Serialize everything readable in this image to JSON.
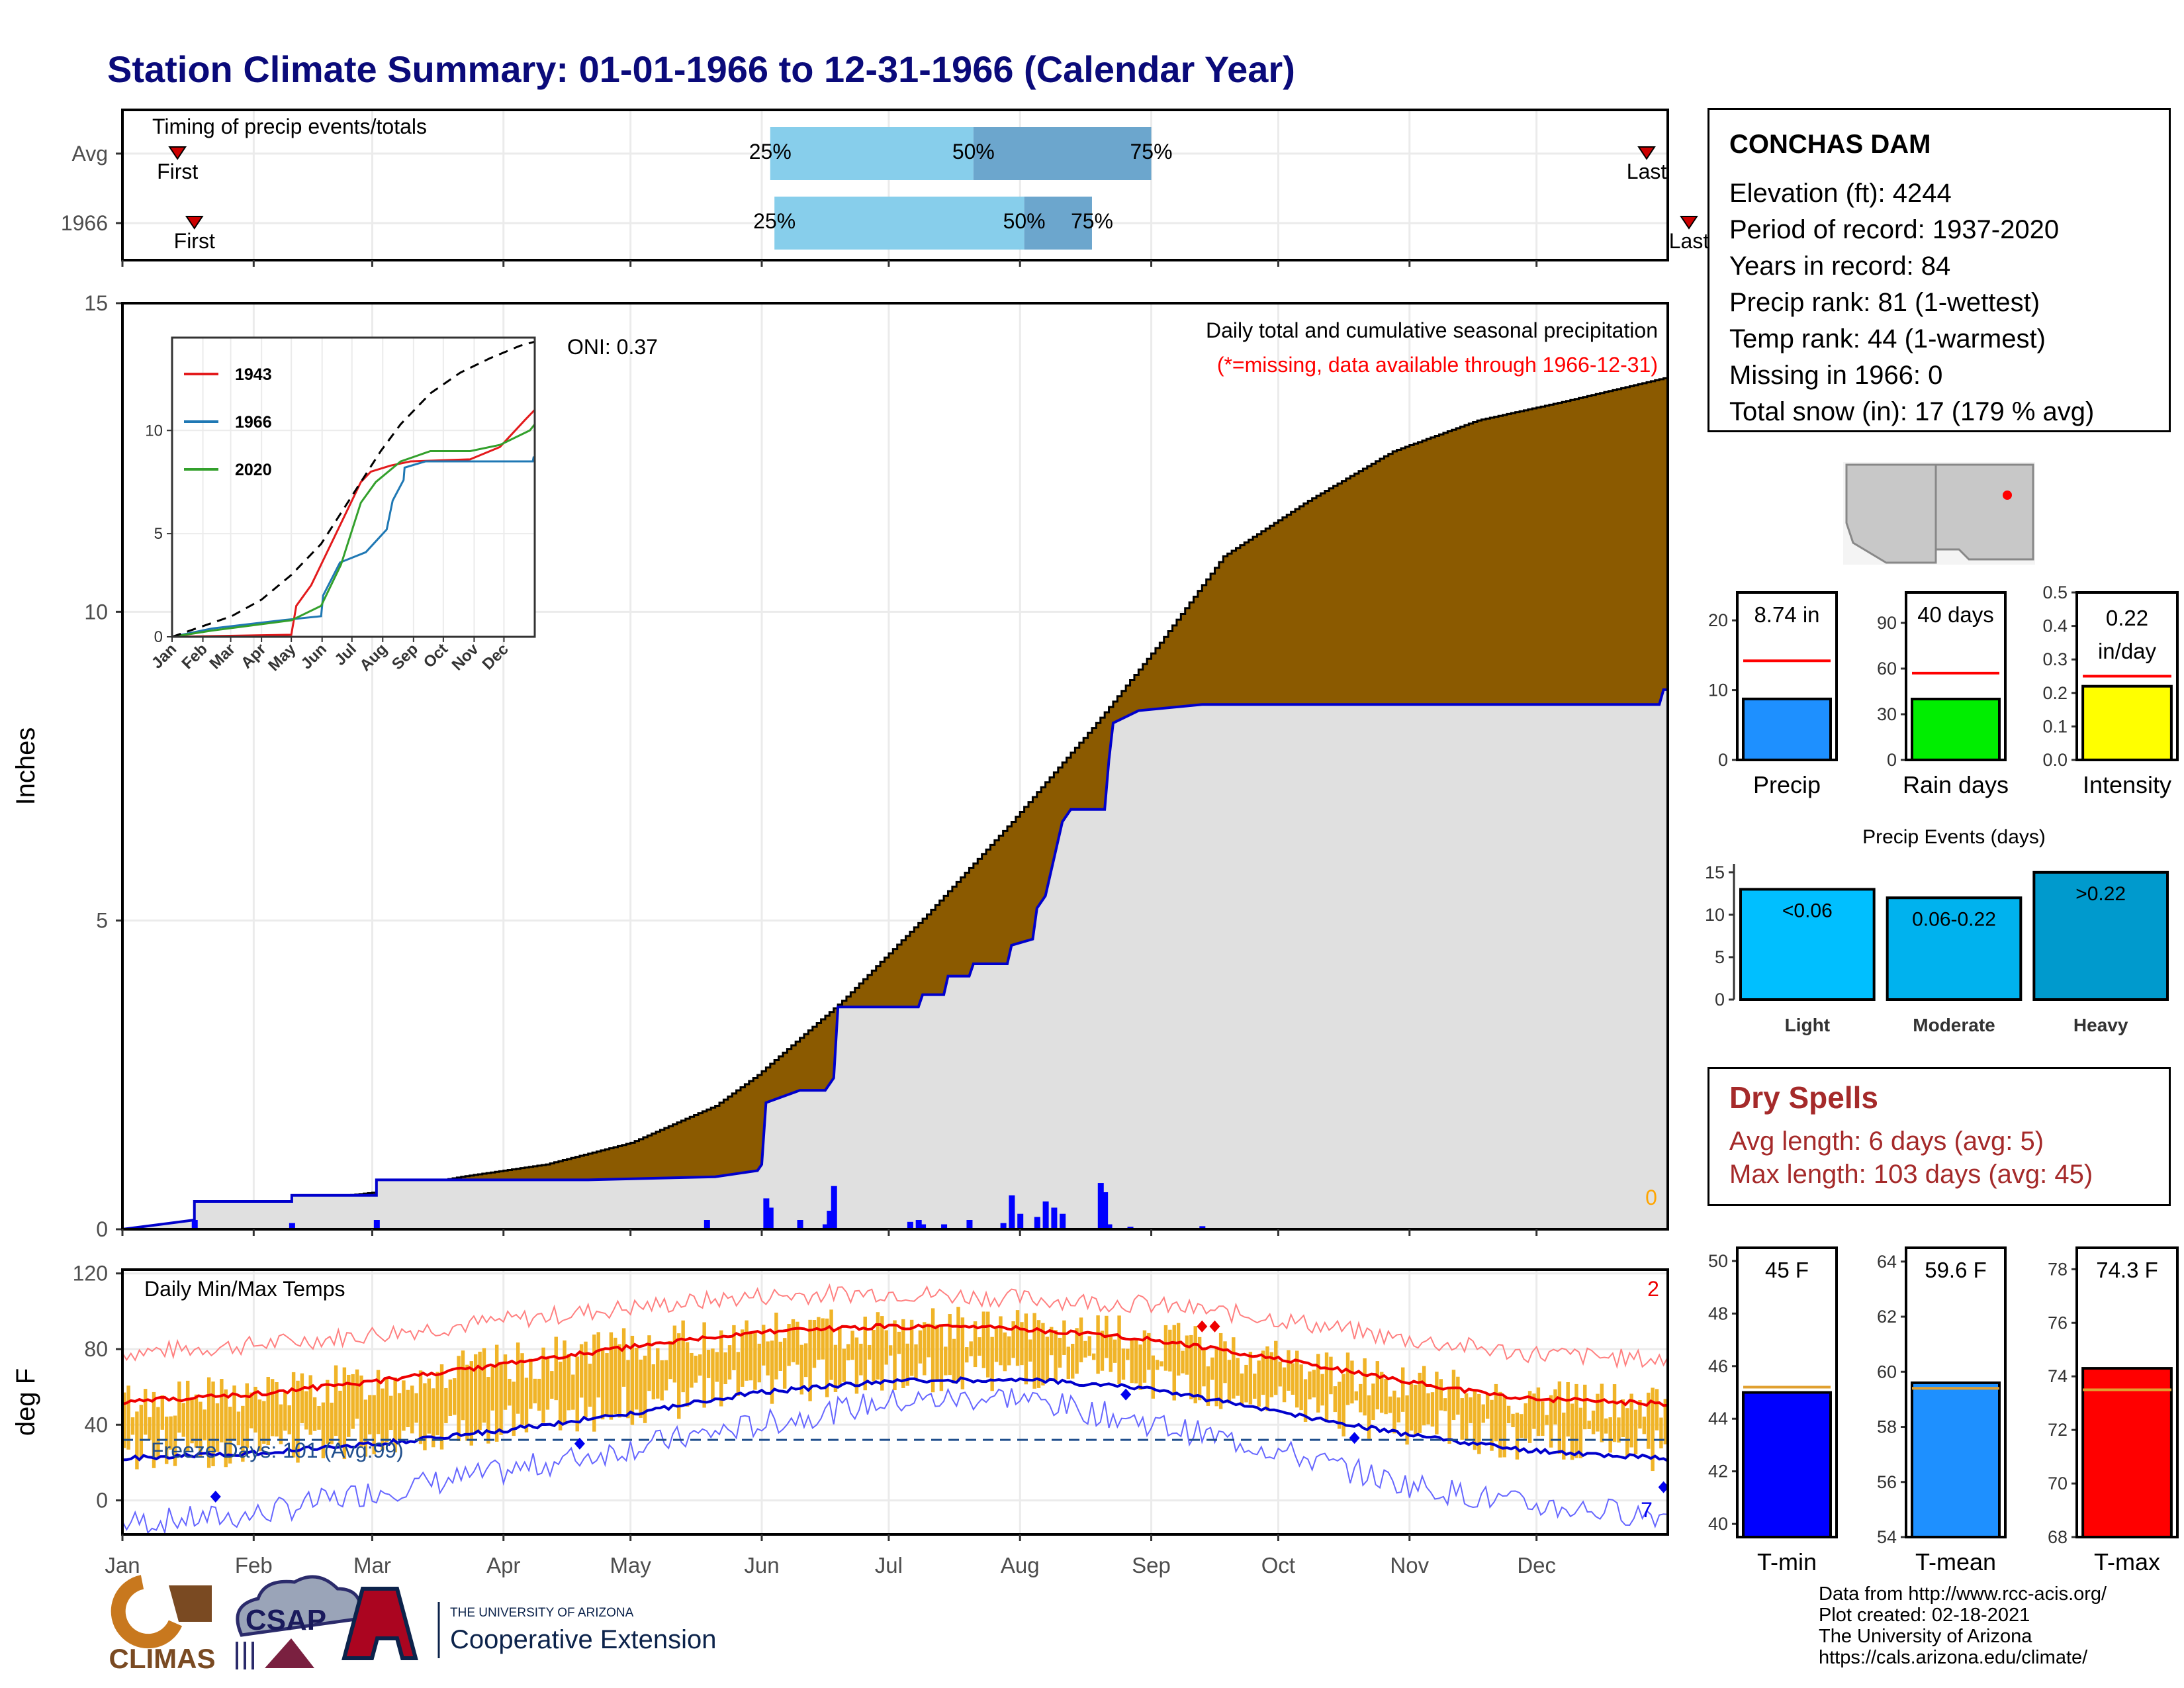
{
  "title": "Station Climate Summary: 01-01-1966 to 12-31-1966 (Calendar Year)",
  "station": {
    "name": "CONCHAS DAM",
    "lines": [
      "Elevation (ft): 4244",
      "Period of record: 1937-2020",
      "Years in record: 84",
      "Precip rank: 81 (1-wettest)",
      "Temp rank: 44 (1-warmest)",
      "Missing in 1966: 0",
      "Total snow (in): 17 (179 % avg)"
    ]
  },
  "dry_spells": {
    "title": "Dry Spells",
    "avg_length": "Avg length: 6 days (avg: 5)",
    "max_length": "Max length: 103 days (avg: 45)"
  },
  "credits": [
    "Data from http://www.rcc-acis.org/",
    "Plot created: 02-18-2021",
    "The University of Arizona",
    "https://cals.arizona.edu/climate/"
  ],
  "logos": {
    "climas": "CLIMAS",
    "csap": "CSAP",
    "uofa_line1": "THE UNIVERSITY OF ARIZONA",
    "uofa_line2": "Cooperative Extension"
  },
  "month_labels": [
    "Jan",
    "Feb",
    "Mar",
    "Apr",
    "May",
    "Jun",
    "Jul",
    "Aug",
    "Sep",
    "Oct",
    "Nov",
    "Dec"
  ],
  "chart_data": [
    {
      "id": "timing",
      "type": "bar",
      "title": "Timing of precip events/totals",
      "categories": [
        "Avg",
        "1966"
      ],
      "x_unit": "day of year",
      "rows": [
        {
          "label": "Avg",
          "first": 13,
          "q25": 153,
          "q50": 201,
          "q75": 243,
          "last": 360
        },
        {
          "label": "1966",
          "first": 17,
          "q25": 154,
          "q50": 213,
          "q75": 229,
          "last": 370
        }
      ],
      "quantile_labels": [
        "25%",
        "50%",
        "75%"
      ],
      "marker_labels": {
        "first": "First",
        "last": "Last"
      },
      "colors": {
        "q1": "#87ceeb",
        "q2": "#6ca6cd",
        "marker": "#cc0000"
      }
    },
    {
      "id": "precip",
      "type": "area",
      "ylabel": "Inches",
      "ylim": [
        0,
        15
      ],
      "yticks": [
        0,
        5,
        10,
        15
      ],
      "annotations": {
        "oni": "ONI: 0.37",
        "heading": "Daily total and cumulative seasonal precipitation",
        "note": "(*=missing, data available through 1966-12-31)",
        "missing_count": "0"
      },
      "series": [
        {
          "name": "avg cumulative",
          "color": "#8b5a00",
          "points": [
            [
              0,
              0
            ],
            [
              20,
              0.15
            ],
            [
              40,
              0.45
            ],
            [
              60,
              0.6
            ],
            [
              80,
              0.85
            ],
            [
              100,
              1.05
            ],
            [
              120,
              1.4
            ],
            [
              140,
              2.0
            ],
            [
              150,
              2.5
            ],
            [
              170,
              3.7
            ],
            [
              190,
              5.1
            ],
            [
              210,
              6.6
            ],
            [
              230,
              8.2
            ],
            [
              245,
              9.5
            ],
            [
              260,
              10.9
            ],
            [
              280,
              11.8
            ],
            [
              300,
              12.6
            ],
            [
              320,
              13.1
            ],
            [
              340,
              13.4
            ],
            [
              365,
              13.8
            ]
          ]
        },
        {
          "name": "1966 cumulative",
          "color": "#0000cc",
          "points": [
            [
              0,
              0
            ],
            [
              17,
              0.15
            ],
            [
              17,
              0.45
            ],
            [
              40,
              0.45
            ],
            [
              40,
              0.55
            ],
            [
              60,
              0.55
            ],
            [
              60,
              0.8
            ],
            [
              110,
              0.8
            ],
            [
              140,
              0.85
            ],
            [
              150,
              0.95
            ],
            [
              151,
              1.05
            ],
            [
              152,
              2.05
            ],
            [
              160,
              2.25
            ],
            [
              166,
              2.25
            ],
            [
              168,
              2.45
            ],
            [
              169,
              3.6
            ],
            [
              188,
              3.6
            ],
            [
              189,
              3.8
            ],
            [
              194,
              3.8
            ],
            [
              195,
              4.1
            ],
            [
              200,
              4.1
            ],
            [
              201,
              4.3
            ],
            [
              209,
              4.3
            ],
            [
              210,
              4.6
            ],
            [
              215,
              4.7
            ],
            [
              216,
              5.2
            ],
            [
              218,
              5.4
            ],
            [
              220,
              6.0
            ],
            [
              222,
              6.6
            ],
            [
              224,
              6.8
            ],
            [
              232,
              6.8
            ],
            [
              233,
              7.6
            ],
            [
              234,
              8.2
            ],
            [
              240,
              8.4
            ],
            [
              255,
              8.5
            ],
            [
              363,
              8.5
            ],
            [
              364,
              8.74
            ]
          ]
        }
      ],
      "daily_bars": [
        [
          17,
          0.15
        ],
        [
          40,
          0.1
        ],
        [
          60,
          0.15
        ],
        [
          138,
          0.15
        ],
        [
          152,
          0.5
        ],
        [
          153,
          0.35
        ],
        [
          160,
          0.15
        ],
        [
          166,
          0.08
        ],
        [
          167,
          0.3
        ],
        [
          168,
          0.7
        ],
        [
          186,
          0.12
        ],
        [
          188,
          0.15
        ],
        [
          189,
          0.08
        ],
        [
          194,
          0.08
        ],
        [
          200,
          0.15
        ],
        [
          208,
          0.1
        ],
        [
          210,
          0.55
        ],
        [
          212,
          0.25
        ],
        [
          216,
          0.2
        ],
        [
          218,
          0.45
        ],
        [
          220,
          0.35
        ],
        [
          222,
          0.25
        ],
        [
          231,
          0.75
        ],
        [
          232,
          0.6
        ],
        [
          233,
          0.08
        ],
        [
          238,
          0.04
        ],
        [
          255,
          0.05
        ]
      ],
      "inset": {
        "type": "line",
        "xlabels": [
          "Jan",
          "Feb",
          "Mar",
          "Apr",
          "May",
          "Jun",
          "Jul",
          "Aug",
          "Sep",
          "Oct",
          "Nov",
          "Dec"
        ],
        "ylim": [
          0,
          14.5
        ],
        "yticks": [
          0,
          5,
          10
        ],
        "series": [
          {
            "name": "1943",
            "color": "#e31a1c",
            "points": [
              [
                0,
                0
              ],
              [
                120,
                0.1
              ],
              [
                125,
                1.5
              ],
              [
                140,
                2.5
              ],
              [
                150,
                3.5
              ],
              [
                170,
                5.5
              ],
              [
                190,
                7.5
              ],
              [
                200,
                8.0
              ],
              [
                220,
                8.3
              ],
              [
                240,
                8.5
              ],
              [
                300,
                8.6
              ],
              [
                330,
                9.2
              ],
              [
                355,
                10.5
              ],
              [
                365,
                11.0
              ]
            ]
          },
          {
            "name": "1966",
            "color": "#1f78b4",
            "points": [
              [
                0,
                0
              ],
              [
                40,
                0.4
              ],
              [
                110,
                0.8
              ],
              [
                150,
                1.0
              ],
              [
                152,
                2.0
              ],
              [
                169,
                3.6
              ],
              [
                195,
                4.1
              ],
              [
                216,
                5.2
              ],
              [
                222,
                6.6
              ],
              [
                233,
                7.6
              ],
              [
                234,
                8.2
              ],
              [
                255,
                8.5
              ],
              [
                363,
                8.5
              ],
              [
                364,
                8.74
              ]
            ]
          },
          {
            "name": "2020",
            "color": "#33a02c",
            "points": [
              [
                0,
                0
              ],
              [
                40,
                0.3
              ],
              [
                120,
                0.8
              ],
              [
                150,
                1.5
              ],
              [
                170,
                3.5
              ],
              [
                190,
                6.5
              ],
              [
                205,
                7.5
              ],
              [
                230,
                8.5
              ],
              [
                260,
                9.0
              ],
              [
                300,
                9.0
              ],
              [
                330,
                9.3
              ],
              [
                360,
                10.0
              ],
              [
                365,
                10.3
              ]
            ]
          },
          {
            "name": "avg",
            "color": "#000000",
            "dashed": true,
            "points": [
              [
                0,
                0
              ],
              [
                30,
                0.5
              ],
              [
                60,
                1.0
              ],
              [
                90,
                1.8
              ],
              [
                120,
                3.0
              ],
              [
                150,
                4.5
              ],
              [
                170,
                6.0
              ],
              [
                190,
                7.5
              ],
              [
                210,
                9.0
              ],
              [
                230,
                10.3
              ],
              [
                260,
                11.8
              ],
              [
                290,
                12.8
              ],
              [
                320,
                13.5
              ],
              [
                350,
                14.1
              ],
              [
                365,
                14.3
              ]
            ]
          }
        ]
      }
    },
    {
      "id": "temps",
      "type": "line",
      "title": "Daily Min/Max Temps",
      "ylabel": "deg F",
      "ylim": [
        -18,
        122
      ],
      "yticks": [
        0,
        40,
        80,
        120
      ],
      "freeze_label": "Freeze Days: 101 (Avg:99)",
      "freeze_line": 32,
      "annotations": {
        "top_right_count": "2",
        "bottom_right_count": "7"
      },
      "series": [
        {
          "name": "avg max",
          "color": "#ee0000",
          "points": [
            [
              0,
              52
            ],
            [
              30,
              56
            ],
            [
              60,
              63
            ],
            [
              90,
              72
            ],
            [
              120,
              81
            ],
            [
              150,
              89
            ],
            [
              180,
              92
            ],
            [
              210,
              91
            ],
            [
              240,
              86
            ],
            [
              270,
              76
            ],
            [
              300,
              64
            ],
            [
              330,
              54
            ],
            [
              365,
              51
            ]
          ]
        },
        {
          "name": "avg min",
          "color": "#0000cc",
          "points": [
            [
              0,
              22
            ],
            [
              30,
              25
            ],
            [
              60,
              30
            ],
            [
              90,
              37
            ],
            [
              120,
              46
            ],
            [
              150,
              57
            ],
            [
              180,
              63
            ],
            [
              210,
              64
            ],
            [
              240,
              60
            ],
            [
              270,
              48
            ],
            [
              300,
              36
            ],
            [
              330,
              27
            ],
            [
              365,
              22
            ]
          ]
        },
        {
          "name": "record max",
          "color": "#ff8080",
          "points": [
            [
              0,
              78
            ],
            [
              30,
              82
            ],
            [
              60,
              88
            ],
            [
              90,
              95
            ],
            [
              120,
              102
            ],
            [
              150,
              108
            ],
            [
              180,
              110
            ],
            [
              210,
              107
            ],
            [
              240,
              104
            ],
            [
              270,
              97
            ],
            [
              300,
              86
            ],
            [
              330,
              78
            ],
            [
              365,
              74
            ]
          ]
        },
        {
          "name": "record min",
          "color": "#6666ff",
          "points": [
            [
              0,
              -12
            ],
            [
              30,
              -8
            ],
            [
              60,
              5
            ],
            [
              90,
              15
            ],
            [
              120,
              28
            ],
            [
              150,
              40
            ],
            [
              180,
              52
            ],
            [
              210,
              55
            ],
            [
              240,
              42
            ],
            [
              270,
              28
            ],
            [
              300,
              10
            ],
            [
              330,
              -2
            ],
            [
              365,
              -8
            ]
          ]
        }
      ],
      "daily_range": {
        "color": "#f0b428"
      }
    },
    {
      "id": "gauges_precip",
      "type": "bar",
      "categories": [
        "Precip",
        "Rain days",
        "Intensity"
      ],
      "values": [
        8.74,
        40,
        0.22
      ],
      "averages": [
        14.2,
        57,
        0.25
      ],
      "value_labels": [
        "8.74 in",
        "40 days",
        "0.22 in/day"
      ],
      "ylims": [
        [
          0,
          24
        ],
        [
          0,
          110
        ],
        [
          0,
          0.5
        ]
      ],
      "yticks": [
        [
          0,
          10,
          20
        ],
        [
          0,
          30,
          60,
          90
        ],
        [
          0.0,
          0.1,
          0.2,
          0.3,
          0.4,
          0.5
        ]
      ],
      "colors": [
        "#1e90ff",
        "#00ee00",
        "#ffff00"
      ]
    },
    {
      "id": "precip_events",
      "type": "bar",
      "title": "Precip Events (days)",
      "categories": [
        "Light",
        "Moderate",
        "Heavy"
      ],
      "values": [
        13,
        12,
        15
      ],
      "value_labels": [
        "<0.06",
        "0.06-0.22",
        ">0.22"
      ],
      "ylim": [
        0,
        16
      ],
      "yticks": [
        0,
        5,
        10,
        15
      ],
      "colors": [
        "#00bfff",
        "#00b2ee",
        "#009acd"
      ]
    },
    {
      "id": "gauges_temp",
      "type": "bar",
      "categories": [
        "T-min",
        "T-mean",
        "T-max"
      ],
      "values": [
        45.0,
        59.6,
        74.3
      ],
      "averages": [
        45.2,
        59.4,
        73.5
      ],
      "value_labels": [
        "45 F",
        "59.6 F",
        "74.3 F"
      ],
      "ylims": [
        [
          39.5,
          50.5
        ],
        [
          54,
          64.5
        ],
        [
          68,
          78.8
        ]
      ],
      "yticks": [
        [
          40,
          42,
          44,
          46,
          48,
          50
        ],
        [
          54,
          56,
          58,
          60,
          62,
          64
        ],
        [
          68,
          70,
          72,
          74,
          76,
          78
        ]
      ],
      "colors": [
        "#0000ff",
        "#1e90ff",
        "#ff0000"
      ]
    }
  ]
}
